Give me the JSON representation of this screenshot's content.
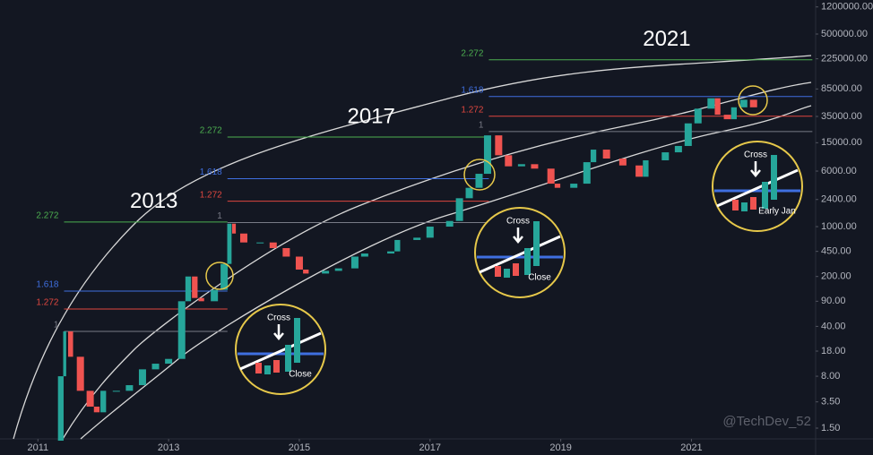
{
  "chart_data": {
    "type": "candlestick-path",
    "log_scale": true,
    "grid": false,
    "up_color": "#26a69a",
    "down_color": "#ef5350",
    "x": [
      2011.25,
      2011.35,
      2011.41,
      2011.5,
      2011.65,
      2011.8,
      2011.9,
      2012.0,
      2012.2,
      2012.4,
      2012.6,
      2012.8,
      2013.0,
      2013.2,
      2013.3,
      2013.4,
      2013.5,
      2013.7,
      2013.85,
      2013.93,
      2014.0,
      2014.15,
      2014.4,
      2014.6,
      2014.8,
      2015.0,
      2015.1,
      2015.4,
      2015.6,
      2015.85,
      2016.0,
      2016.4,
      2016.5,
      2016.8,
      2017.0,
      2017.3,
      2017.45,
      2017.6,
      2017.75,
      2017.88,
      2018.05,
      2018.2,
      2018.4,
      2018.6,
      2018.85,
      2018.95,
      2019.2,
      2019.4,
      2019.5,
      2019.7,
      2019.95,
      2020.2,
      2020.3,
      2020.6,
      2020.8,
      2020.95,
      2021.1,
      2021.3,
      2021.4,
      2021.55,
      2021.65,
      2021.8,
      2021.95
    ],
    "values": [
      1.0,
      8,
      34,
      15,
      5,
      3,
      2.5,
      5,
      5,
      6,
      10,
      12,
      14,
      90,
      200,
      100,
      90,
      130,
      300,
      1100,
      800,
      600,
      600,
      500,
      380,
      250,
      220,
      240,
      260,
      380,
      420,
      450,
      650,
      700,
      1000,
      1200,
      2500,
      3500,
      5500,
      19000,
      10000,
      7000,
      7500,
      6500,
      4000,
      3500,
      4000,
      8000,
      12000,
      9000,
      7200,
      5000,
      8500,
      11000,
      13500,
      28000,
      45000,
      63000,
      37000,
      32000,
      47000,
      60000,
      47000
    ],
    "xlim": [
      2010.42,
      2022.9
    ],
    "ylim": [
      1.06,
      1500000
    ],
    "xticks": [
      2011,
      2013,
      2015,
      2017,
      2019,
      2021
    ],
    "yticks": [
      {
        "value": 1.5,
        "label": "1.50"
      },
      {
        "value": 3.5,
        "label": "3.50"
      },
      {
        "value": 8,
        "label": "8.00"
      },
      {
        "value": 18,
        "label": "18.00"
      },
      {
        "value": 40,
        "label": "40.00"
      },
      {
        "value": 90,
        "label": "90.00"
      },
      {
        "value": 200,
        "label": "200.00"
      },
      {
        "value": 450,
        "label": "450.00"
      },
      {
        "value": 1000,
        "label": "1000.00"
      },
      {
        "value": 2400,
        "label": "2400.00"
      },
      {
        "value": 6000,
        "label": "6000.00"
      },
      {
        "value": 15000,
        "label": "15000.00"
      },
      {
        "value": 35000,
        "label": "35000.00"
      },
      {
        "value": 85000,
        "label": "85000.00"
      },
      {
        "value": 225000,
        "label": "225000.00"
      },
      {
        "value": 500000,
        "label": "500000.00"
      },
      {
        "value": 1200000,
        "label": "1200000.00"
      }
    ],
    "cycles": [
      {
        "name": "2013",
        "start": 2011.4,
        "end": 2013.9,
        "levels": [
          {
            "label": "2.272",
            "value": 1160,
            "color": "#4caf50"
          },
          {
            "label": "1.618",
            "value": 125,
            "color": "#3f6fe0"
          },
          {
            "label": "1.272",
            "value": 70,
            "color": "#e0473f"
          },
          {
            "label": "1",
            "value": 34,
            "color": "#787b86"
          }
        ]
      },
      {
        "name": "2017",
        "start": 2013.9,
        "end": 2017.9,
        "levels": [
          {
            "label": "2.272",
            "value": 18000,
            "color": "#4caf50"
          },
          {
            "label": "1.618",
            "value": 4700,
            "color": "#3f6fe0"
          },
          {
            "label": "1.272",
            "value": 2270,
            "color": "#e0473f"
          },
          {
            "label": "1",
            "value": 1140,
            "color": "#787b86"
          }
        ]
      },
      {
        "name": "2021",
        "start": 2017.9,
        "end": 2022.85,
        "levels": [
          {
            "label": "2.272",
            "value": 218000,
            "color": "#4caf50"
          },
          {
            "label": "1.618",
            "value": 66700,
            "color": "#3f6fe0"
          },
          {
            "label": "1.272",
            "value": 35300,
            "color": "#e0473f"
          },
          {
            "label": "1",
            "value": 21500,
            "color": "#787b86"
          }
        ]
      }
    ],
    "callouts": [
      {
        "labels": [
          "Cross",
          "Close"
        ]
      },
      {
        "labels": [
          "Cross",
          "Close"
        ]
      },
      {
        "labels": [
          "Cross",
          "Early Jan"
        ]
      }
    ],
    "watermark": "@TechDev_52"
  }
}
